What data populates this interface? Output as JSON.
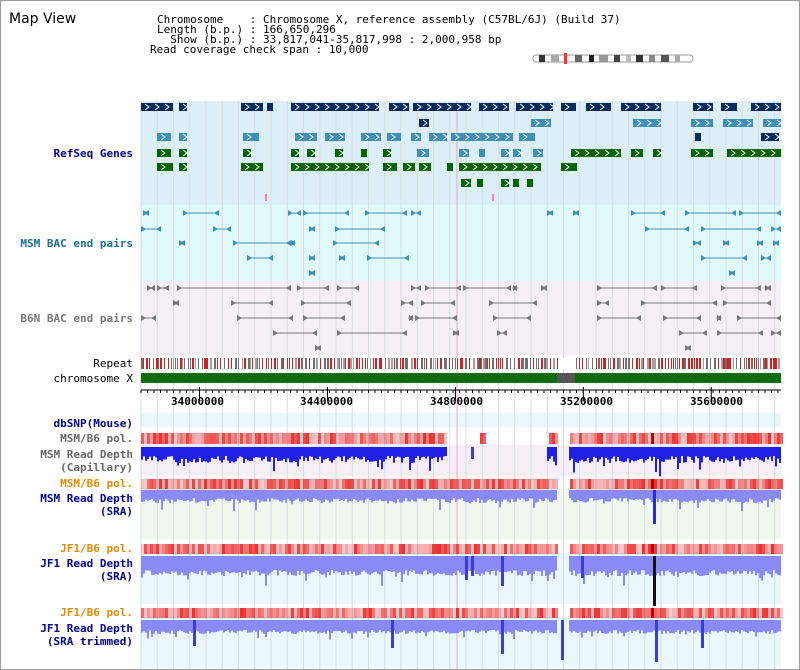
{
  "title": "Map View",
  "info": {
    "chromosome_key": "Chromosome    :",
    "chromosome_val": "Chromosome X, reference assembly (C57BL/6J) (Build 37)",
    "length_key": "Length (b.p.) :",
    "length_val": "166,650,296",
    "show_key": "  Show (b.p.) :",
    "show_val": "33,817,041-35,817,998 : 2,000,958 bp",
    "span_key": "Read coverage check span :",
    "span_val": "10,000"
  },
  "tracks": {
    "refseq": {
      "label": "RefSeq Genes",
      "color": "#000099"
    },
    "msm_bac": {
      "label": "MSM BAC end pairs",
      "color": "#1a6f8c"
    },
    "b6n_bac": {
      "label": "B6N BAC end pairs",
      "color": "#777777"
    },
    "repeat": {
      "label": "Repeat",
      "color": "#000000"
    },
    "chromosome": {
      "label": "chromosome X",
      "color": "#000000"
    },
    "dbsnp": {
      "label": "dbSNP(Mouse)",
      "color": "#000099"
    },
    "msm_b6_pol": {
      "label": "MSM/B6 pol.",
      "color": "#666666"
    },
    "msm_depth_cap": {
      "label1": "MSM Read Depth",
      "label2": "(Capillary)",
      "color": "#666666"
    },
    "msm_b6_pol_sra": {
      "label": "MSM/B6 pol.",
      "color": "#e68a00"
    },
    "msm_depth_sra": {
      "label1": "MSM Read Depth",
      "label2": "(SRA)",
      "color": "#000099"
    },
    "jf1_b6_pol": {
      "label": "JF1/B6 pol.",
      "color": "#e68a00"
    },
    "jf1_depth_sra": {
      "label1": "JF1 Read Depth",
      "label2": "(SRA)",
      "color": "#000099"
    },
    "jf1_b6_pol2": {
      "label": "JF1/B6 pol.",
      "color": "#e68a00"
    },
    "jf1_depth_trim": {
      "label1": "JF1 Read Depth",
      "label2": "(SRA trimmed)",
      "color": "#000099"
    }
  },
  "axis": {
    "ticks": [
      "34000000",
      "34400000",
      "34800000",
      "35200000",
      "35600000"
    ],
    "tick_values": [
      34000000,
      34400000,
      34800000,
      35200000,
      35600000
    ],
    "range": [
      33817041,
      35817998
    ]
  },
  "colors": {
    "refseq_bg": "#dceef8",
    "msm_bac_bg": "#e0fafa",
    "b6n_bac_bg": "#f6f0f6",
    "dark_gene": "#0a2a5c",
    "mid_gene": "#3f90b8",
    "green_gene": "#006600",
    "chrom_green": "#0e6b0e",
    "depth_blue": "#1f1fe6",
    "depth_light": "#8a8af5",
    "pol_red": "#e83030"
  }
}
